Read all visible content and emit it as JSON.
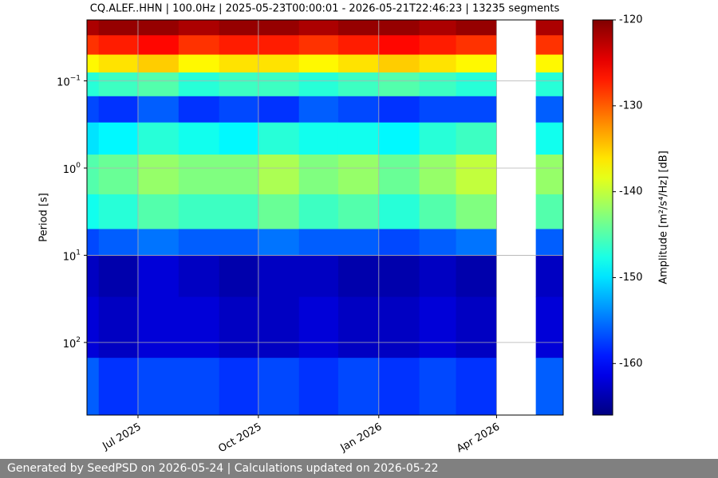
{
  "chart_data": {
    "type": "spectrogram",
    "title": "CQ.ALEF..HHN | 100.0Hz | 2025-05-23T00:00:01 - 2026-05-21T22:46:23 | 13235 segments",
    "y_label": "Period [s]",
    "colorbar_label": "Amplitude [m²/s⁴/Hz] [dB]",
    "x": [
      "2025-05",
      "2025-06",
      "2025-07",
      "2025-08",
      "2025-09",
      "2025-10",
      "2025-11",
      "2025-12",
      "2026-01",
      "2026-02",
      "2026-03",
      "2026-04",
      "2026-05"
    ],
    "xlim": [
      "2025-05-23T00:00:01",
      "2026-05-21T22:46:23"
    ],
    "xticks": [
      {
        "value": "2025-07",
        "label": "Jul 2025"
      },
      {
        "value": "2025-10",
        "label": "Oct 2025"
      },
      {
        "value": "2026-01",
        "label": "Jan 2026"
      },
      {
        "value": "2026-04",
        "label": "Apr 2026"
      }
    ],
    "y_edges": [
      0.02,
      0.03,
      0.05,
      0.08,
      0.15,
      0.3,
      0.7,
      2,
      5,
      10,
      30,
      150,
      680
    ],
    "ylim": [
      0.02,
      680
    ],
    "y_log": true,
    "y_inverted": true,
    "yticks": [
      {
        "value": 0.1,
        "label": "10",
        "exponent": "−1"
      },
      {
        "value": 1,
        "label": "10",
        "exponent": "0"
      },
      {
        "value": 10,
        "label": "10",
        "exponent": "1"
      },
      {
        "value": 100,
        "label": "10",
        "exponent": "2"
      }
    ],
    "grid": true,
    "colormap": "jet",
    "clim": [
      -166,
      -120
    ],
    "cticks": [
      -120,
      -130,
      -140,
      -150,
      -160
    ],
    "z": [
      [
        -122,
        -121,
        -121,
        -122,
        -121,
        -121,
        -122,
        -121,
        -121,
        -122,
        -121,
        null,
        -122
      ],
      [
        -128,
        -127,
        -126,
        -128,
        -127,
        -127,
        -128,
        -127,
        -126,
        -127,
        -128,
        null,
        -128
      ],
      [
        -137,
        -136,
        -135,
        -137,
        -136,
        -136,
        -137,
        -136,
        -135,
        -136,
        -137,
        null,
        -137
      ],
      [
        -147,
        -146,
        -145,
        -147,
        -146,
        -146,
        -147,
        -146,
        -145,
        -146,
        -147,
        null,
        -147
      ],
      [
        -157,
        -158,
        -156,
        -158,
        -157,
        -158,
        -156,
        -157,
        -158,
        -157,
        -157,
        null,
        -156
      ],
      [
        -150,
        -149,
        -147,
        -148,
        -149,
        -147,
        -148,
        -148,
        -149,
        -147,
        -146,
        null,
        -148
      ],
      [
        -145,
        -144,
        -142,
        -143,
        -143,
        -141,
        -143,
        -142,
        -144,
        -142,
        -140,
        null,
        -142
      ],
      [
        -148,
        -147,
        -145,
        -146,
        -146,
        -144,
        -146,
        -145,
        -147,
        -145,
        -143,
        null,
        -145
      ],
      [
        -157,
        -156,
        -155,
        -156,
        -156,
        -155,
        -156,
        -156,
        -157,
        -156,
        -155,
        null,
        -156
      ],
      [
        -163,
        -164,
        -162,
        -163,
        -164,
        -163,
        -163,
        -164,
        -164,
        -163,
        -164,
        null,
        -163
      ],
      [
        -162,
        -163,
        -162,
        -162,
        -163,
        -163,
        -162,
        -163,
        -163,
        -162,
        -163,
        null,
        -162
      ],
      [
        -156,
        -158,
        -157,
        -157,
        -158,
        -157,
        -158,
        -157,
        -158,
        -157,
        -158,
        null,
        -156
      ]
    ]
  },
  "footer": "Generated by SeedPSD on 2026-05-24 | Calculations updated on 2026-05-22"
}
